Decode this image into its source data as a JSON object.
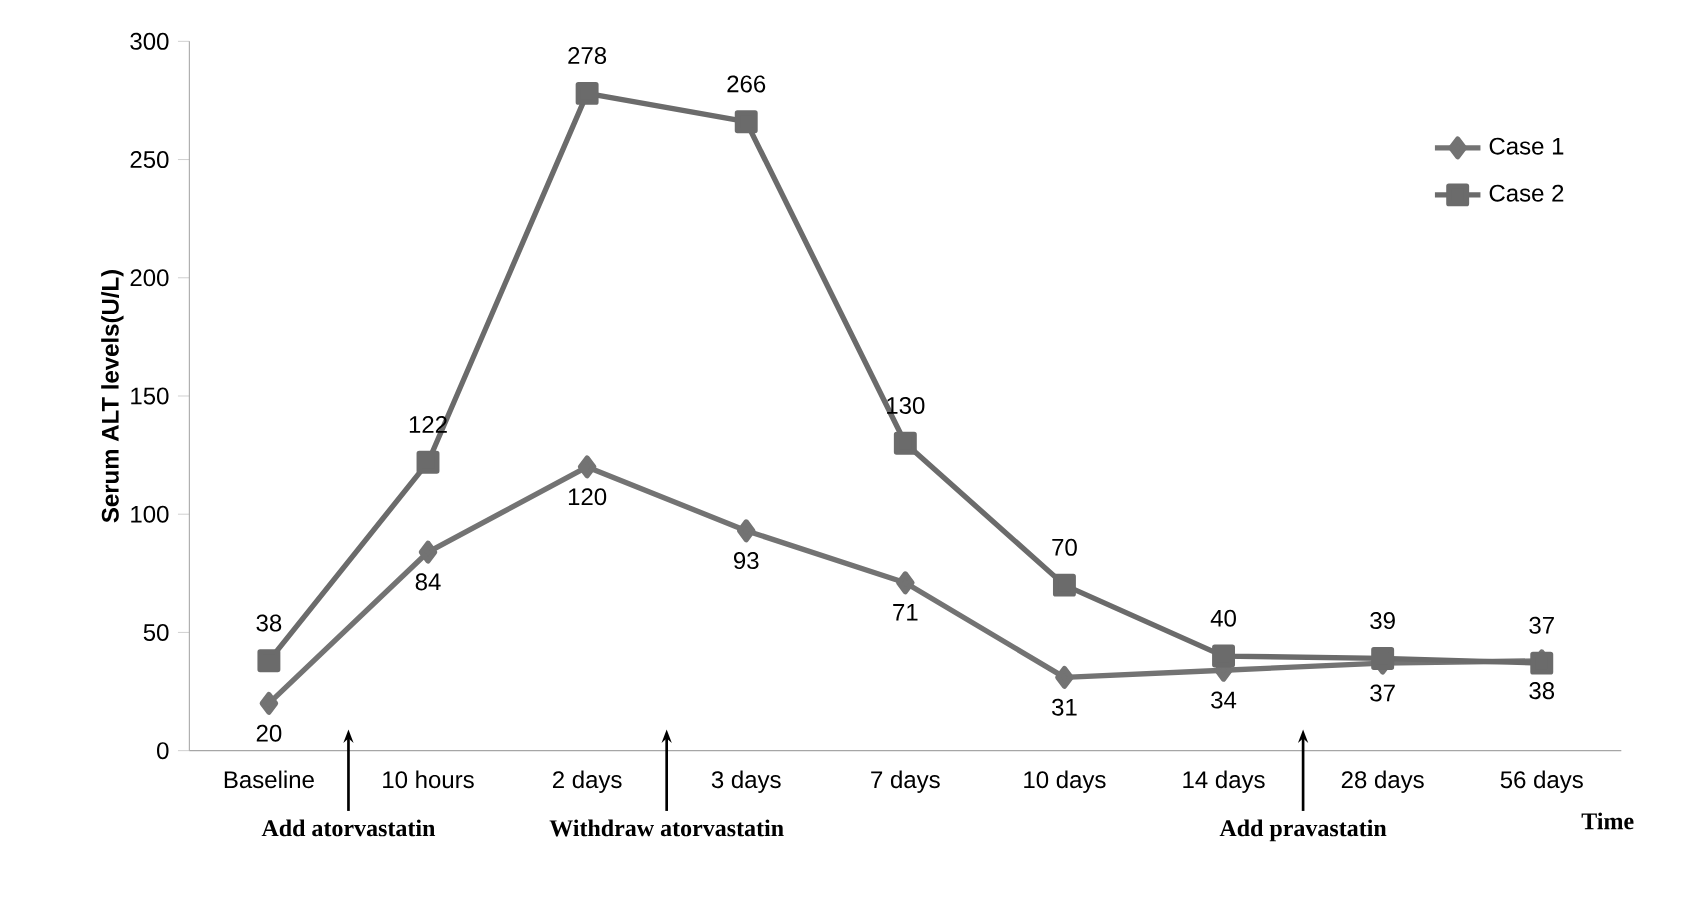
{
  "chart_data": {
    "type": "line",
    "ylabel": "Serum ALT levels(U/L)",
    "xlabel": "Time",
    "categories": [
      "Baseline",
      "10 hours",
      "2 days",
      "3 days",
      "7 days",
      "10 days",
      "14 days",
      "28 days",
      "56 days"
    ],
    "series": [
      {
        "name": "Case 1",
        "color": "#737373",
        "marker": "diamond",
        "values": [
          20,
          84,
          120,
          93,
          71,
          31,
          34,
          37,
          38
        ]
      },
      {
        "name": "Case 2",
        "color": "#6b6b6b",
        "marker": "square",
        "values": [
          38,
          122,
          278,
          266,
          130,
          70,
          40,
          39,
          37
        ]
      }
    ],
    "ylim": [
      0,
      300
    ],
    "yticks": [
      0,
      50,
      100,
      150,
      200,
      250,
      300
    ],
    "data_labels": true,
    "grid": false,
    "legend": "top right",
    "annotations": [
      "Add atorvastatin",
      "Withdraw atorvastatin",
      "Add pravastatin"
    ]
  }
}
